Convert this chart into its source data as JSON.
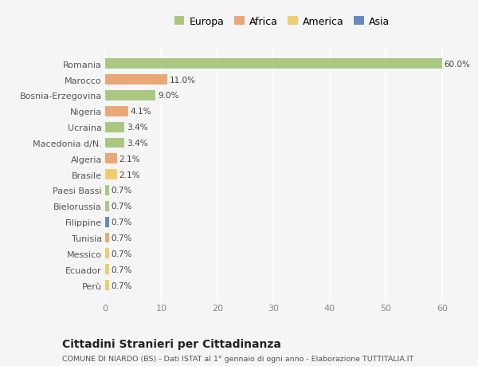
{
  "categories": [
    "Perù",
    "Ecuador",
    "Messico",
    "Tunisia",
    "Filippine",
    "Bielorussia",
    "Paesi Bassi",
    "Brasile",
    "Algeria",
    "Macedonia d/N.",
    "Ucraina",
    "Nigeria",
    "Bosnia-Erzegovina",
    "Marocco",
    "Romania"
  ],
  "values": [
    0.7,
    0.7,
    0.7,
    0.7,
    0.7,
    0.7,
    0.7,
    2.1,
    2.1,
    3.4,
    3.4,
    4.1,
    9.0,
    11.0,
    60.0
  ],
  "continents": [
    "America",
    "America",
    "America",
    "Africa",
    "Asia",
    "Europa",
    "Europa",
    "America",
    "Africa",
    "Europa",
    "Europa",
    "Africa",
    "Europa",
    "Africa",
    "Europa"
  ],
  "colors": {
    "Europa": "#aac882",
    "Africa": "#e8a878",
    "America": "#f0cc70",
    "Asia": "#6888c0"
  },
  "legend_order": [
    "Europa",
    "Africa",
    "America",
    "Asia"
  ],
  "xlim": [
    0,
    63
  ],
  "xticks": [
    0,
    10,
    20,
    30,
    40,
    50,
    60
  ],
  "title": "Cittadini Stranieri per Cittadinanza",
  "subtitle": "COMUNE DI NIARDO (BS) - Dati ISTAT al 1° gennaio di ogni anno - Elaborazione TUTTITALIA.IT",
  "bg_color": "#f5f5f5",
  "grid_color": "#ffffff",
  "bar_height": 0.65
}
